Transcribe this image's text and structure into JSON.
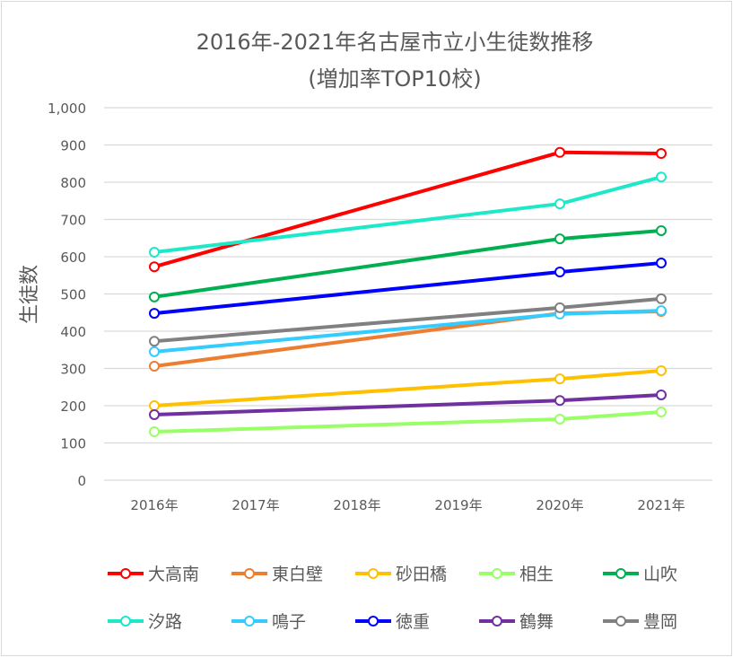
{
  "chart_data": {
    "type": "line",
    "title": "2016年-2021年名古屋市立小生徒数推移",
    "subtitle": "(増加率TOP10校)",
    "ylabel": "生徒数",
    "xlabel": "",
    "categories": [
      "2016年",
      "2017年",
      "2018年",
      "2019年",
      "2020年",
      "2021年"
    ],
    "ylim": [
      0,
      1000
    ],
    "yticks": [
      "0",
      "100",
      "200",
      "300",
      "400",
      "500",
      "600",
      "700",
      "800",
      "900",
      "1,000"
    ],
    "grid": true,
    "legend": "bottom",
    "series": [
      {
        "name": "大高南",
        "color": "#ff0000",
        "values": [
          573,
          null,
          null,
          null,
          880,
          877
        ]
      },
      {
        "name": "東白壁",
        "color": "#ed7d31",
        "values": [
          306,
          null,
          null,
          null,
          448,
          453
        ]
      },
      {
        "name": "砂田橋",
        "color": "#ffc000",
        "values": [
          200,
          null,
          null,
          null,
          272,
          294
        ]
      },
      {
        "name": "相生",
        "color": "#99ff66",
        "values": [
          130,
          null,
          null,
          null,
          164,
          183
        ]
      },
      {
        "name": "山吹",
        "color": "#00b050",
        "values": [
          492,
          null,
          null,
          null,
          648,
          670
        ]
      },
      {
        "name": "汐路",
        "color": "#1de9c8",
        "values": [
          612,
          null,
          null,
          null,
          742,
          814
        ]
      },
      {
        "name": "鳴子",
        "color": "#33ccff",
        "values": [
          345,
          null,
          null,
          null,
          446,
          455
        ]
      },
      {
        "name": "徳重",
        "color": "#0000ff",
        "values": [
          448,
          null,
          null,
          null,
          559,
          583
        ]
      },
      {
        "name": "鶴舞",
        "color": "#7030a0",
        "values": [
          176,
          null,
          null,
          null,
          214,
          229
        ]
      },
      {
        "name": "豊岡",
        "color": "#808080",
        "values": [
          373,
          null,
          null,
          null,
          463,
          487
        ]
      }
    ]
  }
}
